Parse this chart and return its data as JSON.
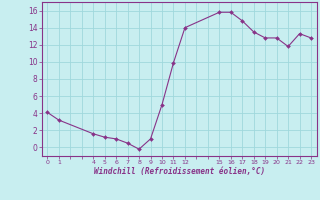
{
  "x": [
    0,
    1,
    4,
    5,
    6,
    7,
    8,
    9,
    10,
    11,
    12,
    15,
    16,
    17,
    18,
    19,
    20,
    21,
    22,
    23
  ],
  "y": [
    4.1,
    3.2,
    1.6,
    1.2,
    1.0,
    0.5,
    -0.2,
    1.0,
    5.0,
    9.9,
    14.0,
    15.8,
    15.8,
    14.8,
    13.5,
    12.8,
    12.8,
    11.8,
    13.3,
    12.8
  ],
  "line_color": "#883388",
  "marker_color": "#883388",
  "bg_color": "#c8eef0",
  "grid_color": "#a0d8dc",
  "xlabel": "Windchill (Refroidissement éolien,°C)",
  "xlabel_color": "#883388",
  "tick_color": "#883388",
  "spine_color": "#883388",
  "xlim": [
    -0.5,
    23.5
  ],
  "ylim": [
    -1.0,
    17.0
  ],
  "yticks": [
    0,
    2,
    4,
    6,
    8,
    10,
    12,
    14,
    16
  ],
  "xtick_positions": [
    0,
    1,
    2,
    3,
    4,
    5,
    6,
    7,
    8,
    9,
    10,
    11,
    12,
    13,
    14,
    15,
    16,
    17,
    18,
    19,
    20,
    21,
    22,
    23
  ],
  "xtick_labels": [
    "0",
    "1",
    "",
    "",
    "4",
    "5",
    "6",
    "7",
    "8",
    "9",
    "10",
    "11",
    "12",
    "",
    "",
    "15",
    "16",
    "17",
    "18",
    "19",
    "20",
    "21",
    "22",
    "23"
  ]
}
